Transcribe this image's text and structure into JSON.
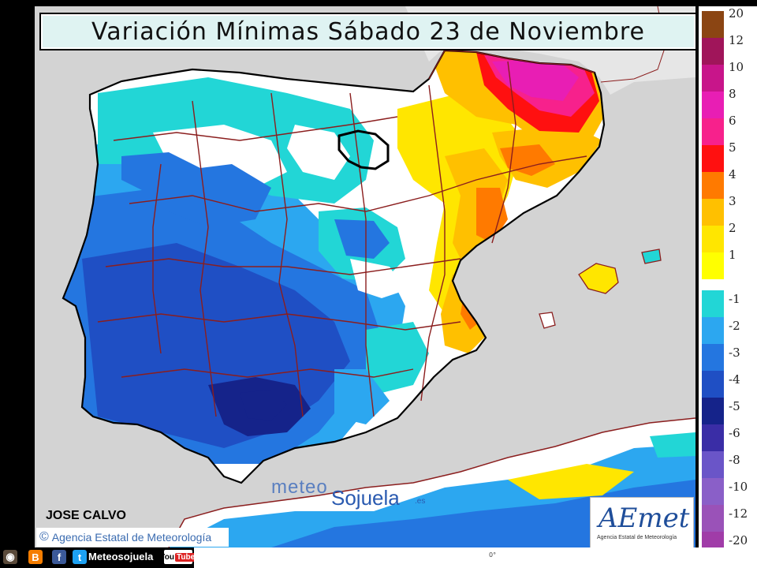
{
  "title": "Variación Mínimas Sábado 23 de Noviembre",
  "author": "JOSE CALVO",
  "copyright": "Agencia Estatal de Meteorología",
  "watermark": {
    "meteo": "meteo",
    "sojuela": "Sojuela",
    "domain": ".es"
  },
  "logo": {
    "word": "AEmet",
    "subtitle": "Agencia Estatal de Meteorología"
  },
  "legend": {
    "warm": [
      {
        "label": "20",
        "color": "#8b4513"
      },
      {
        "label": "12",
        "color": "#a0155a"
      },
      {
        "label": "10",
        "color": "#c8158a"
      },
      {
        "label": "8",
        "color": "#e81eb4"
      },
      {
        "label": "6",
        "color": "#f7218c"
      },
      {
        "label": "5",
        "color": "#ff1010"
      },
      {
        "label": "4",
        "color": "#ff7a00"
      },
      {
        "label": "3",
        "color": "#ffc000"
      },
      {
        "label": "2",
        "color": "#ffe600"
      },
      {
        "label": "1",
        "color": "#ffff00"
      }
    ],
    "cold": [
      {
        "label": "-1",
        "color": "#22d6d6"
      },
      {
        "label": "-2",
        "color": "#2ca7f0"
      },
      {
        "label": "-3",
        "color": "#2476e0"
      },
      {
        "label": "-4",
        "color": "#1f4fc4"
      },
      {
        "label": "-5",
        "color": "#15238a"
      },
      {
        "label": "-6",
        "color": "#3a2da6"
      },
      {
        "label": "-8",
        "color": "#6a55c8"
      },
      {
        "label": "-10",
        "color": "#8a5fc8"
      },
      {
        "label": "-12",
        "color": "#9a52b8"
      },
      {
        "label": "-20",
        "color": "#a03ca8"
      }
    ]
  },
  "footer": {
    "name": "Meteosojuela",
    "icons": [
      "instagram-icon",
      "blogger-icon",
      "facebook-icon",
      "twitter-icon"
    ],
    "youtube": {
      "you": "You",
      "tube": "Tube"
    },
    "degree_mark": "0°"
  },
  "colors": {
    "sea": "#d3d3d3",
    "land_neutral": "#ffffff",
    "border_lines": "#8b1e1e",
    "coast": "#000000"
  }
}
